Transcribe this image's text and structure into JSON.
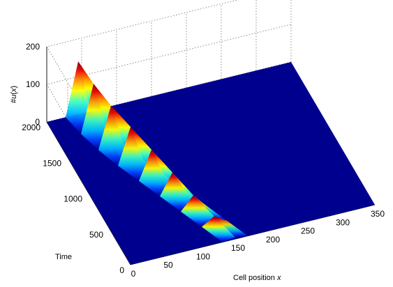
{
  "chart_data": {
    "type": "surface",
    "colormap": "jet",
    "view": "3d",
    "grid": true,
    "xlabel_parts": [
      "Cell position ",
      "x"
    ],
    "ylabel": "Time",
    "zlabel_parts": [
      "#",
      "u",
      "(",
      "x",
      ")"
    ],
    "xlim": [
      0,
      350
    ],
    "ylim": [
      0,
      2000
    ],
    "zlim": [
      0,
      200
    ],
    "xticks": [
      "0",
      "50",
      "100",
      "150",
      "200",
      "250",
      "300",
      "350"
    ],
    "yticks": [
      "0",
      "500",
      "1000",
      "1500",
      "2000"
    ],
    "zticks": [
      "0",
      "100",
      "200"
    ],
    "ridge": {
      "description_points": [
        {
          "time": 0,
          "x": 150,
          "peak": 5
        },
        {
          "time": 250,
          "x": 135,
          "peak": 20
        },
        {
          "time": 500,
          "x": 120,
          "peak": 35
        },
        {
          "time": 750,
          "x": 105,
          "peak": 55
        },
        {
          "time": 1000,
          "x": 90,
          "peak": 75
        },
        {
          "time": 1250,
          "x": 75,
          "peak": 95
        },
        {
          "time": 1500,
          "x": 62,
          "peak": 110
        },
        {
          "time": 1750,
          "x": 52,
          "peak": 125
        },
        {
          "time": 2000,
          "x": 45,
          "peak": 140
        }
      ]
    }
  }
}
